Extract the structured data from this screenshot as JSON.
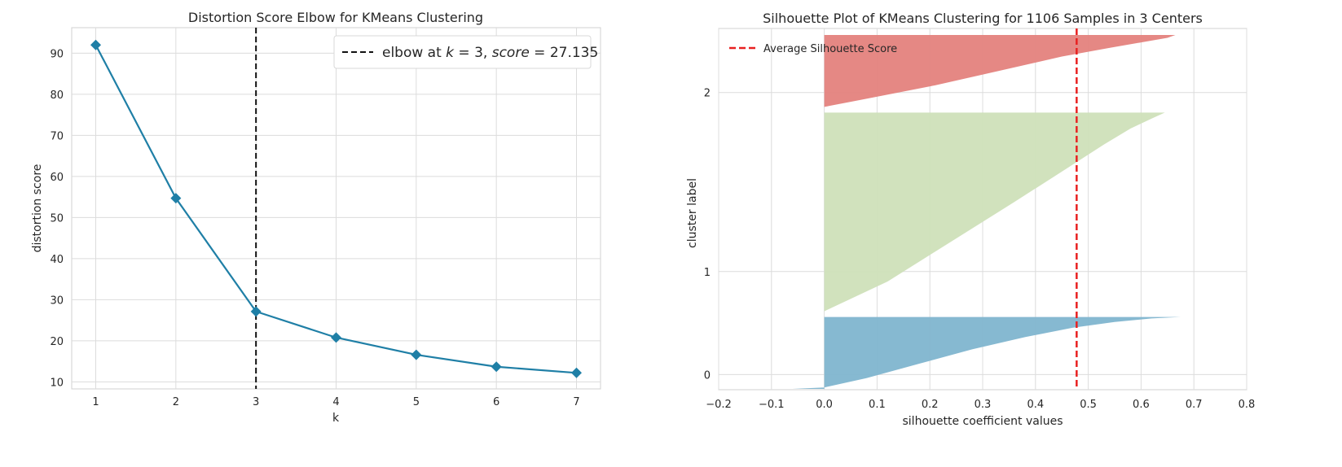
{
  "colors": {
    "line": "#1f7fa6",
    "elbow": "#111111",
    "grid": "#dcdcdc",
    "frame": "#d0d0d0",
    "cluster_0": "#7fb5cf",
    "cluster_1": "#cfe0b9",
    "cluster_2": "#e4827d",
    "average": "#e82020"
  },
  "chart_data": [
    {
      "type": "line",
      "title": "Distortion Score Elbow for KMeans Clustering",
      "xlabel": "k",
      "ylabel": "distortion score",
      "x": [
        1,
        2,
        3,
        4,
        5,
        6,
        7
      ],
      "y": [
        92.0,
        54.7,
        27.135,
        20.8,
        16.6,
        13.7,
        12.2
      ],
      "xlim": [
        0.7,
        7.3
      ],
      "ylim": [
        8.3,
        96.2
      ],
      "x_ticks": [
        "1",
        "2",
        "3",
        "4",
        "5",
        "6",
        "7"
      ],
      "y_ticks": [
        "10",
        "20",
        "30",
        "40",
        "50",
        "60",
        "70",
        "80",
        "90"
      ],
      "marker": "diamond",
      "grid": true,
      "elbow": {
        "k": 3,
        "legend_prefix": "elbow at ",
        "legend_k": "k",
        "legend_k_value": " = 3, ",
        "legend_score": "score",
        "legend_score_value": " = 27.135"
      },
      "legend_position": "upper-right"
    },
    {
      "type": "area",
      "title": "Silhouette Plot of KMeans Clustering for 1106 Samples in 3 Centers",
      "xlabel": "silhouette coefficient values",
      "ylabel": "cluster label",
      "xlim": [
        -0.2,
        0.8
      ],
      "x_ticks": [
        "−0.2",
        "−0.1",
        "0.0",
        "0.1",
        "0.2",
        "0.3",
        "0.4",
        "0.5",
        "0.6",
        "0.7",
        "0.8"
      ],
      "y_ticks": [
        "0",
        "1",
        "2"
      ],
      "average_silhouette_score": 0.478,
      "legend": "Average Silhouette Score",
      "legend_position": "upper-left",
      "grid": true,
      "clusters": [
        {
          "label": "0",
          "sample_fraction": 0.21,
          "min_coefficient": -0.06,
          "profile": [
            [
              0.0,
              -0.06
            ],
            [
              0.02,
              0.0
            ],
            [
              0.15,
              0.08
            ],
            [
              0.35,
              0.18
            ],
            [
              0.55,
              0.28
            ],
            [
              0.72,
              0.38
            ],
            [
              0.85,
              0.47
            ],
            [
              0.93,
              0.55
            ],
            [
              0.98,
              0.62
            ],
            [
              1.0,
              0.675
            ]
          ]
        },
        {
          "label": "1",
          "sample_fraction": 0.58,
          "min_coefficient": 0.0,
          "profile": [
            [
              0.0,
              0.0
            ],
            [
              0.15,
              0.12
            ],
            [
              0.35,
              0.24
            ],
            [
              0.55,
              0.36
            ],
            [
              0.72,
              0.46
            ],
            [
              0.84,
              0.53
            ],
            [
              0.92,
              0.58
            ],
            [
              0.97,
              0.62
            ],
            [
              1.0,
              0.645
            ]
          ]
        },
        {
          "label": "2",
          "sample_fraction": 0.21,
          "min_coefficient": 0.0,
          "profile": [
            [
              0.0,
              0.0
            ],
            [
              0.1,
              0.07
            ],
            [
              0.3,
              0.21
            ],
            [
              0.5,
              0.33
            ],
            [
              0.7,
              0.45
            ],
            [
              0.82,
              0.54
            ],
            [
              0.91,
              0.61
            ],
            [
              0.96,
              0.65
            ],
            [
              1.0,
              0.665
            ]
          ]
        }
      ]
    }
  ]
}
